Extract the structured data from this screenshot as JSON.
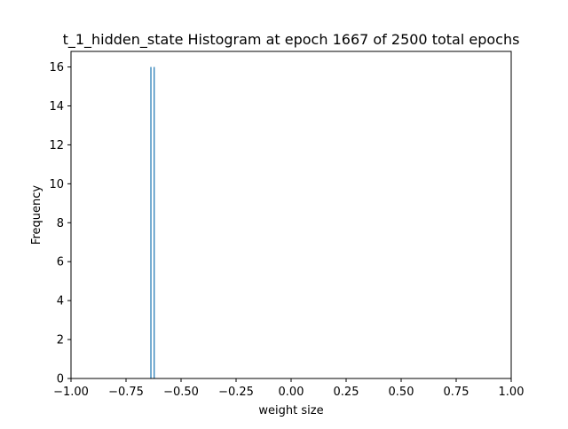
{
  "chart_data": {
    "type": "bar",
    "title": "t_1_hidden_state Histogram at epoch 1667 of 2500 total epochs",
    "xlabel": "weight size",
    "ylabel": "Frequency",
    "xlim": [
      -1.0,
      1.0
    ],
    "ylim": [
      0,
      16.8
    ],
    "x_ticks": [
      -1.0,
      -0.75,
      -0.5,
      -0.25,
      0.0,
      0.25,
      0.5,
      0.75,
      1.0
    ],
    "x_tick_labels": [
      "−1.00",
      "−0.75",
      "−0.50",
      "−0.25",
      "0.00",
      "0.25",
      "0.50",
      "0.75",
      "1.00"
    ],
    "y_ticks": [
      0,
      2,
      4,
      6,
      8,
      10,
      12,
      14,
      16
    ],
    "y_tick_labels": [
      "0",
      "2",
      "4",
      "6",
      "8",
      "10",
      "12",
      "14",
      "16"
    ],
    "bin_width": 0.005,
    "bars": [
      {
        "x": -0.637,
        "value": 16
      },
      {
        "x": -0.622,
        "value": 16
      }
    ],
    "bar_color": "#1f77b4",
    "grid": false,
    "legend": "none"
  }
}
